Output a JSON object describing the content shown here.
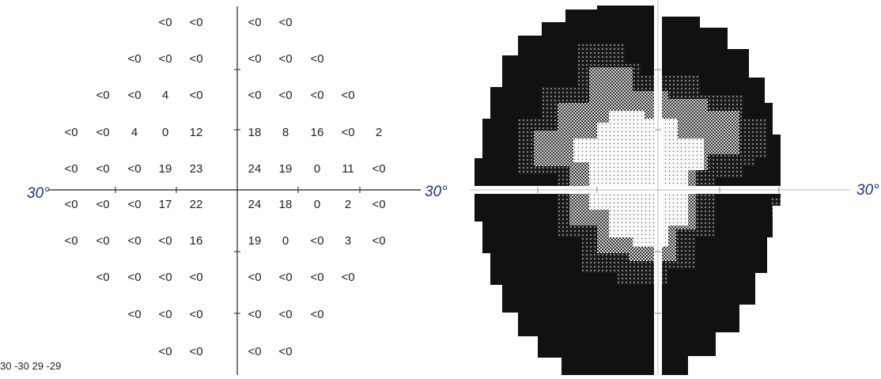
{
  "numeric_grid": {
    "rows": [
      [
        "",
        "",
        "",
        "<0",
        "<0",
        "<0",
        "<0",
        "",
        "",
        ""
      ],
      [
        "",
        "",
        "<0",
        "<0",
        "<0",
        "<0",
        "<0",
        "<0",
        "",
        ""
      ],
      [
        "",
        "<0",
        "<0",
        "4",
        "<0",
        "<0",
        "<0",
        "<0",
        "<0",
        ""
      ],
      [
        "<0",
        "<0",
        "4",
        "0",
        "12",
        "18",
        "8",
        "16",
        "<0",
        "2"
      ],
      [
        "<0",
        "<0",
        "<0",
        "19",
        "23",
        "24",
        "19",
        "0",
        "11",
        "<0"
      ],
      [
        "<0",
        "<0",
        "<0",
        "17",
        "22",
        "24",
        "18",
        "0",
        "2",
        "<0"
      ],
      [
        "<0",
        "<0",
        "<0",
        "<0",
        "16",
        "19",
        "0",
        "<0",
        "3",
        "<0"
      ],
      [
        "",
        "<0",
        "<0",
        "<0",
        "<0",
        "<0",
        "<0",
        "<0",
        "<0",
        ""
      ],
      [
        "",
        "",
        "<0",
        "<0",
        "<0",
        "<0",
        "<0",
        "<0",
        "",
        ""
      ],
      [
        "",
        "",
        "",
        "<0",
        "<0",
        "<0",
        "<0",
        "",
        "",
        ""
      ]
    ]
  },
  "labels": {
    "left_30": "30°",
    "middle_30": "30°",
    "right_30": "30°",
    "corner_text": "30 -30 29 -29"
  },
  "colors": {
    "numbers": "#222222",
    "degree_label": "#1f2f8a",
    "map_dark": "#111111",
    "axis": "#ffffff"
  }
}
